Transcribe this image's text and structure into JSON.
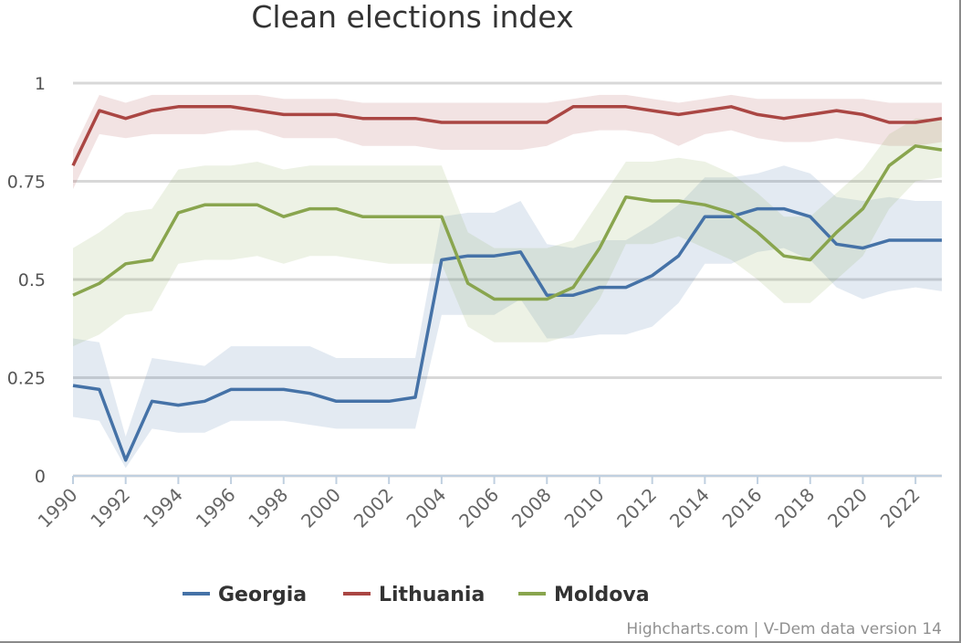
{
  "chart_data": {
    "type": "line",
    "title": "Clean elections index",
    "xlabel": "",
    "ylabel": "",
    "xlim": [
      1990,
      2023
    ],
    "ylim": [
      0,
      1
    ],
    "yticks": [
      0,
      0.25,
      0.5,
      0.75,
      1
    ],
    "ytick_labels": [
      "0",
      "0.25",
      "0.5",
      "0.75",
      "1"
    ],
    "xticks": [
      1990,
      1992,
      1994,
      1996,
      1998,
      2000,
      2002,
      2004,
      2006,
      2008,
      2010,
      2012,
      2014,
      2016,
      2018,
      2020,
      2022
    ],
    "xtick_labels": [
      "1990",
      "1992",
      "1994",
      "1996",
      "1998",
      "2000",
      "2002",
      "2004",
      "2006",
      "2008",
      "2010",
      "2012",
      "2014",
      "2016",
      "2018",
      "2020",
      "2022"
    ],
    "grid": true,
    "legend_position": "bottom-center",
    "x": [
      1990,
      1991,
      1992,
      1993,
      1994,
      1995,
      1996,
      1997,
      1998,
      1999,
      2000,
      2001,
      2002,
      2003,
      2004,
      2005,
      2006,
      2007,
      2008,
      2009,
      2010,
      2011,
      2012,
      2013,
      2014,
      2015,
      2016,
      2017,
      2018,
      2019,
      2020,
      2021,
      2022,
      2023
    ],
    "series": [
      {
        "name": "Georgia",
        "color": "#4572a7",
        "values": [
          0.23,
          0.22,
          0.04,
          0.19,
          0.18,
          0.19,
          0.22,
          0.22,
          0.22,
          0.21,
          0.19,
          0.19,
          0.19,
          0.2,
          0.55,
          0.56,
          0.56,
          0.57,
          0.46,
          0.46,
          0.48,
          0.48,
          0.51,
          0.56,
          0.66,
          0.66,
          0.68,
          0.68,
          0.66,
          0.59,
          0.58,
          0.6,
          0.6,
          0.6
        ],
        "lower": [
          0.15,
          0.14,
          0.02,
          0.12,
          0.11,
          0.11,
          0.14,
          0.14,
          0.14,
          0.13,
          0.12,
          0.12,
          0.12,
          0.12,
          0.41,
          0.41,
          0.41,
          0.45,
          0.35,
          0.35,
          0.36,
          0.36,
          0.38,
          0.44,
          0.54,
          0.54,
          0.57,
          0.58,
          0.55,
          0.48,
          0.45,
          0.47,
          0.48,
          0.47
        ],
        "upper": [
          0.35,
          0.34,
          0.1,
          0.3,
          0.29,
          0.28,
          0.33,
          0.33,
          0.33,
          0.33,
          0.3,
          0.3,
          0.3,
          0.3,
          0.66,
          0.67,
          0.67,
          0.7,
          0.59,
          0.58,
          0.6,
          0.6,
          0.64,
          0.69,
          0.76,
          0.76,
          0.77,
          0.79,
          0.77,
          0.71,
          0.7,
          0.71,
          0.7,
          0.7
        ]
      },
      {
        "name": "Lithuania",
        "color": "#aa4643",
        "values": [
          0.79,
          0.93,
          0.91,
          0.93,
          0.94,
          0.94,
          0.94,
          0.93,
          0.92,
          0.92,
          0.92,
          0.91,
          0.91,
          0.91,
          0.9,
          0.9,
          0.9,
          0.9,
          0.9,
          0.94,
          0.94,
          0.94,
          0.93,
          0.92,
          0.93,
          0.94,
          0.92,
          0.91,
          0.92,
          0.93,
          0.92,
          0.9,
          0.9,
          0.91
        ],
        "lower": [
          0.73,
          0.87,
          0.86,
          0.87,
          0.87,
          0.87,
          0.88,
          0.88,
          0.86,
          0.86,
          0.86,
          0.84,
          0.84,
          0.84,
          0.83,
          0.83,
          0.83,
          0.83,
          0.84,
          0.87,
          0.88,
          0.88,
          0.87,
          0.84,
          0.87,
          0.88,
          0.86,
          0.85,
          0.85,
          0.86,
          0.85,
          0.84,
          0.84,
          0.85
        ],
        "upper": [
          0.83,
          0.97,
          0.95,
          0.97,
          0.97,
          0.97,
          0.97,
          0.97,
          0.96,
          0.96,
          0.96,
          0.95,
          0.95,
          0.95,
          0.95,
          0.95,
          0.95,
          0.95,
          0.95,
          0.96,
          0.97,
          0.97,
          0.96,
          0.95,
          0.96,
          0.97,
          0.96,
          0.96,
          0.96,
          0.96,
          0.96,
          0.95,
          0.95,
          0.95
        ]
      },
      {
        "name": "Moldova",
        "color": "#89a54e",
        "values": [
          0.46,
          0.49,
          0.54,
          0.55,
          0.67,
          0.69,
          0.69,
          0.69,
          0.66,
          0.68,
          0.68,
          0.66,
          0.66,
          0.66,
          0.66,
          0.49,
          0.45,
          0.45,
          0.45,
          0.48,
          0.58,
          0.71,
          0.7,
          0.7,
          0.69,
          0.67,
          0.62,
          0.56,
          0.55,
          0.62,
          0.68,
          0.79,
          0.84,
          0.83
        ],
        "lower": [
          0.33,
          0.36,
          0.41,
          0.42,
          0.54,
          0.55,
          0.55,
          0.56,
          0.54,
          0.56,
          0.56,
          0.55,
          0.54,
          0.54,
          0.54,
          0.38,
          0.34,
          0.34,
          0.34,
          0.36,
          0.45,
          0.59,
          0.59,
          0.61,
          0.58,
          0.55,
          0.5,
          0.44,
          0.44,
          0.5,
          0.56,
          0.68,
          0.75,
          0.76
        ],
        "upper": [
          0.58,
          0.62,
          0.67,
          0.68,
          0.78,
          0.79,
          0.79,
          0.8,
          0.78,
          0.79,
          0.79,
          0.79,
          0.79,
          0.79,
          0.79,
          0.62,
          0.58,
          0.58,
          0.58,
          0.6,
          0.7,
          0.8,
          0.8,
          0.81,
          0.8,
          0.77,
          0.72,
          0.66,
          0.66,
          0.72,
          0.78,
          0.87,
          0.91,
          0.91
        ]
      }
    ]
  },
  "credits": "Highcharts.com | V-Dem data version 14"
}
